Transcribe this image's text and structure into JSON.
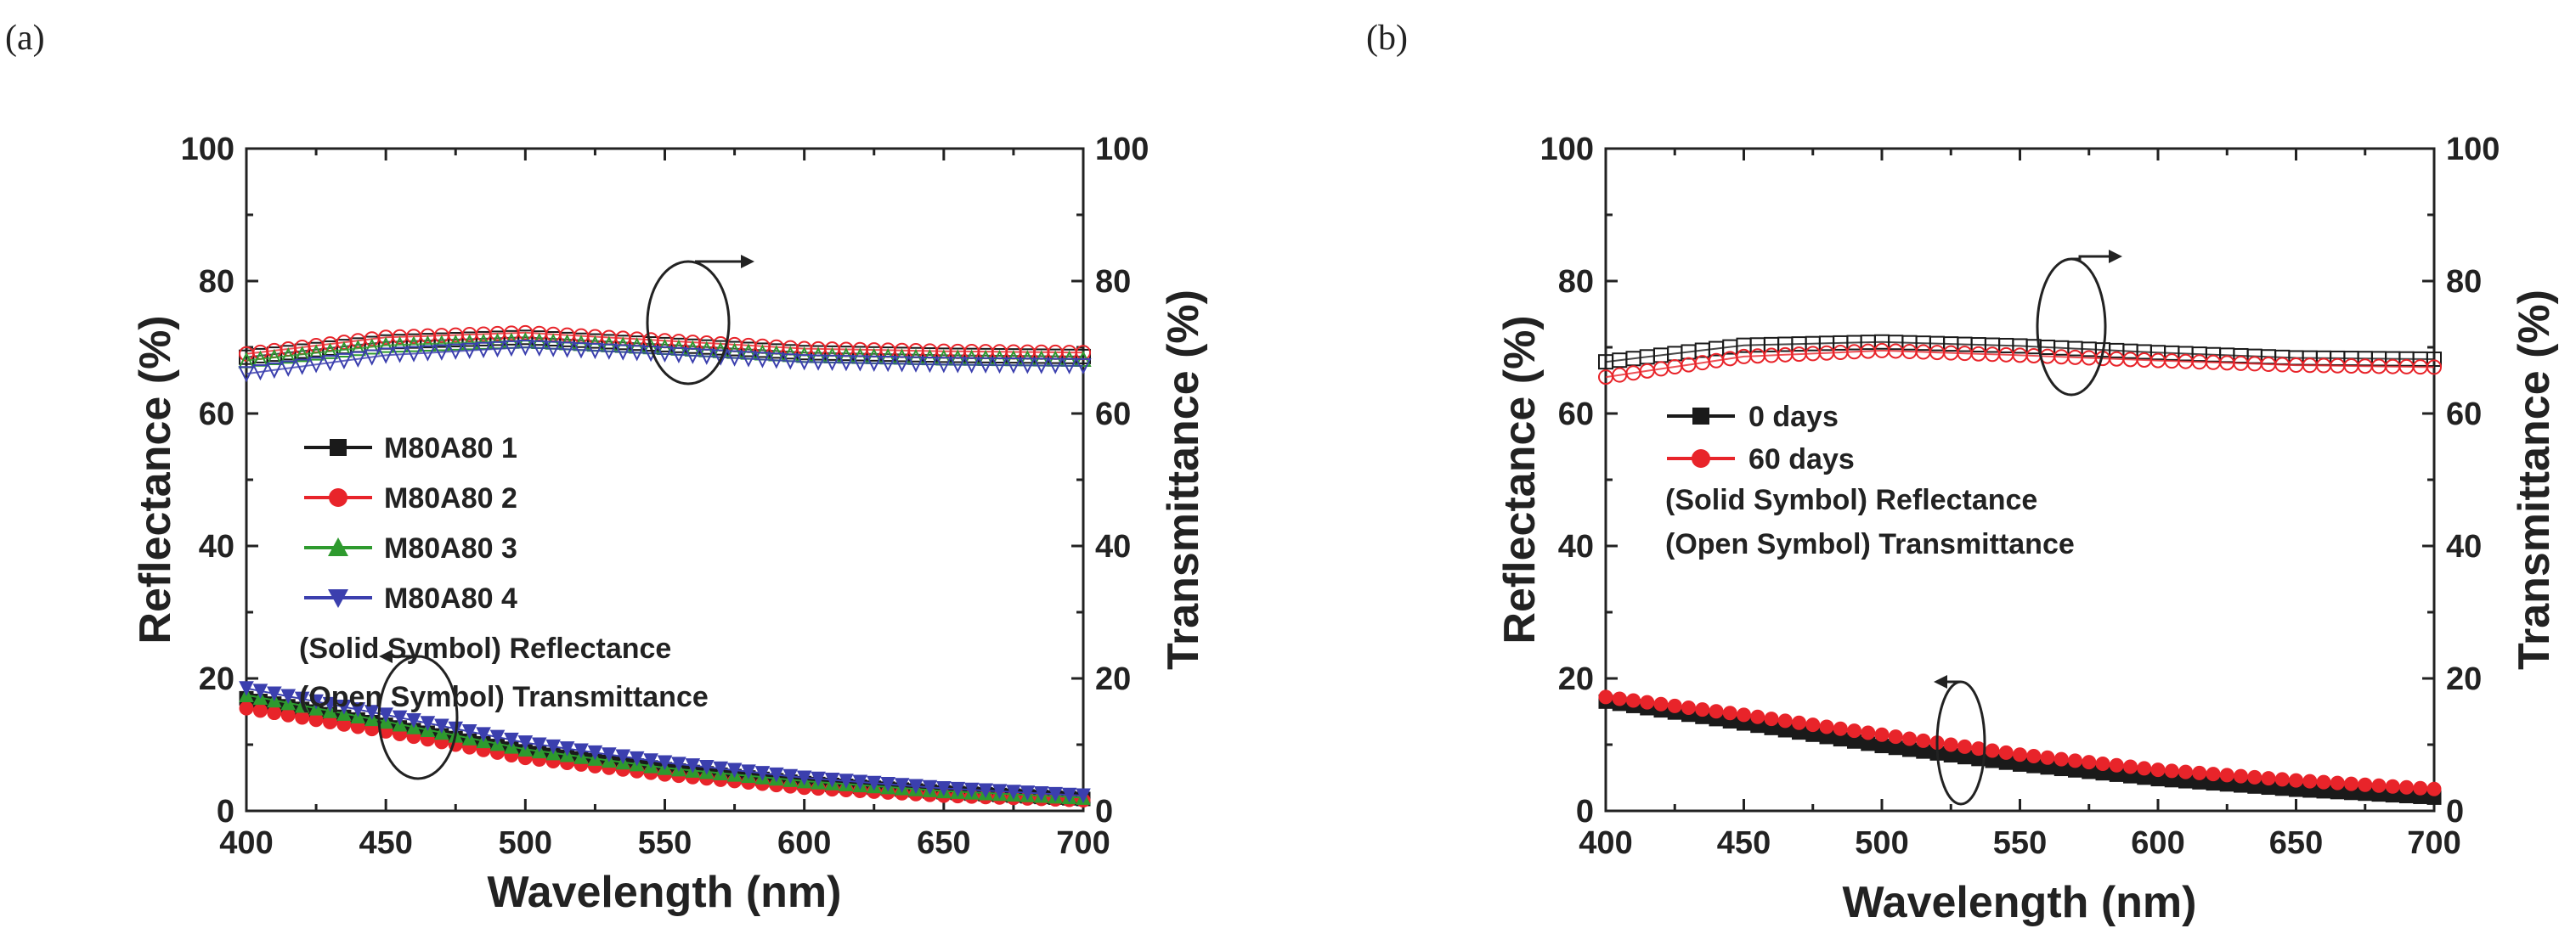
{
  "chart_data": [
    {
      "type": "line",
      "panel_label": "(a)",
      "xlabel": "Wavelength (nm)",
      "ylabel_left": "Reflectance (%)",
      "ylabel_right": "Transmittance (%)",
      "xlim": [
        400,
        700
      ],
      "ylim": [
        0,
        100
      ],
      "xticks": [
        400,
        450,
        500,
        550,
        600,
        650,
        700
      ],
      "yticks": [
        0,
        20,
        40,
        60,
        80,
        100
      ],
      "legend_position": "center-left",
      "legend_notes": [
        "(Solid Symbol) Reflectance",
        "(Open Symbol) Transmittance"
      ],
      "series": [
        {
          "name": "M80A80 1",
          "color": "#1a1a1a",
          "marker": "square",
          "reflectance": {
            "x": [
              400,
              450,
              500,
              550,
              600,
              650,
              700
            ],
            "y": [
              17.0,
              13.0,
              9.0,
              6.3,
              4.2,
              2.8,
              1.8
            ]
          },
          "transmittance": {
            "x": [
              400,
              450,
              500,
              550,
              600,
              650,
              700
            ],
            "y": [
              68.5,
              70.8,
              71.5,
              70.4,
              69.2,
              68.8,
              68.6
            ]
          }
        },
        {
          "name": "M80A80 2",
          "color": "#e8242a",
          "marker": "circle",
          "reflectance": {
            "x": [
              400,
              450,
              500,
              550,
              600,
              650,
              700
            ],
            "y": [
              15.5,
              12.0,
              8.0,
              5.5,
              3.5,
              2.3,
              1.6
            ]
          },
          "transmittance": {
            "x": [
              400,
              450,
              500,
              550,
              600,
              650,
              700
            ],
            "y": [
              69.0,
              71.5,
              72.2,
              71.0,
              69.8,
              69.4,
              69.2
            ]
          }
        },
        {
          "name": "M80A80 3",
          "color": "#2e9a2e",
          "marker": "triangle-up",
          "reflectance": {
            "x": [
              400,
              450,
              500,
              550,
              600,
              650,
              700
            ],
            "y": [
              17.5,
              13.5,
              9.3,
              6.5,
              4.5,
              3.0,
              2.0
            ]
          },
          "transmittance": {
            "x": [
              400,
              450,
              500,
              550,
              600,
              650,
              700
            ],
            "y": [
              68.0,
              70.3,
              71.0,
              70.0,
              68.8,
              68.4,
              68.2
            ]
          }
        },
        {
          "name": "M80A80 4",
          "color": "#3b3fae",
          "marker": "triangle-down",
          "reflectance": {
            "x": [
              400,
              450,
              500,
              550,
              600,
              650,
              700
            ],
            "y": [
              18.5,
              14.5,
              10.3,
              7.3,
              5.0,
              3.4,
              2.3
            ]
          },
          "transmittance": {
            "x": [
              400,
              450,
              500,
              550,
              600,
              650,
              700
            ],
            "y": [
              66.0,
              68.8,
              70.0,
              69.0,
              67.8,
              67.4,
              67.2
            ]
          }
        }
      ]
    },
    {
      "type": "line",
      "panel_label": "(b)",
      "xlabel": "Wavelength (nm)",
      "ylabel_left": "Reflectance (%)",
      "ylabel_right": "Transmittance (%)",
      "xlim": [
        400,
        700
      ],
      "ylim": [
        0,
        100
      ],
      "xticks": [
        400,
        450,
        500,
        550,
        600,
        650,
        700
      ],
      "yticks": [
        0,
        20,
        40,
        60,
        80,
        100
      ],
      "legend_position": "center-left",
      "legend_notes": [
        "(Solid Symbol) Reflectance",
        "(Open Symbol) Transmittance"
      ],
      "series": [
        {
          "name": "0 days",
          "color": "#1a1a1a",
          "marker": "square",
          "reflectance": {
            "x": [
              400,
              450,
              500,
              550,
              600,
              650,
              700
            ],
            "y": [
              16.5,
              13.2,
              9.8,
              7.0,
              4.8,
              3.2,
              2.0
            ]
          },
          "transmittance": {
            "x": [
              400,
              450,
              500,
              550,
              600,
              650,
              700
            ],
            "y": [
              67.8,
              70.3,
              70.8,
              70.2,
              69.2,
              68.4,
              68.2
            ]
          }
        },
        {
          "name": "60 days",
          "color": "#e8242a",
          "marker": "circle",
          "reflectance": {
            "x": [
              400,
              450,
              500,
              550,
              600,
              650,
              700
            ],
            "y": [
              17.2,
              14.5,
              11.5,
              8.5,
              6.2,
              4.6,
              3.3
            ]
          },
          "transmittance": {
            "x": [
              400,
              450,
              500,
              550,
              600,
              650,
              700
            ],
            "y": [
              65.5,
              68.6,
              69.5,
              68.8,
              68.0,
              67.3,
              67.0
            ]
          }
        }
      ]
    }
  ]
}
